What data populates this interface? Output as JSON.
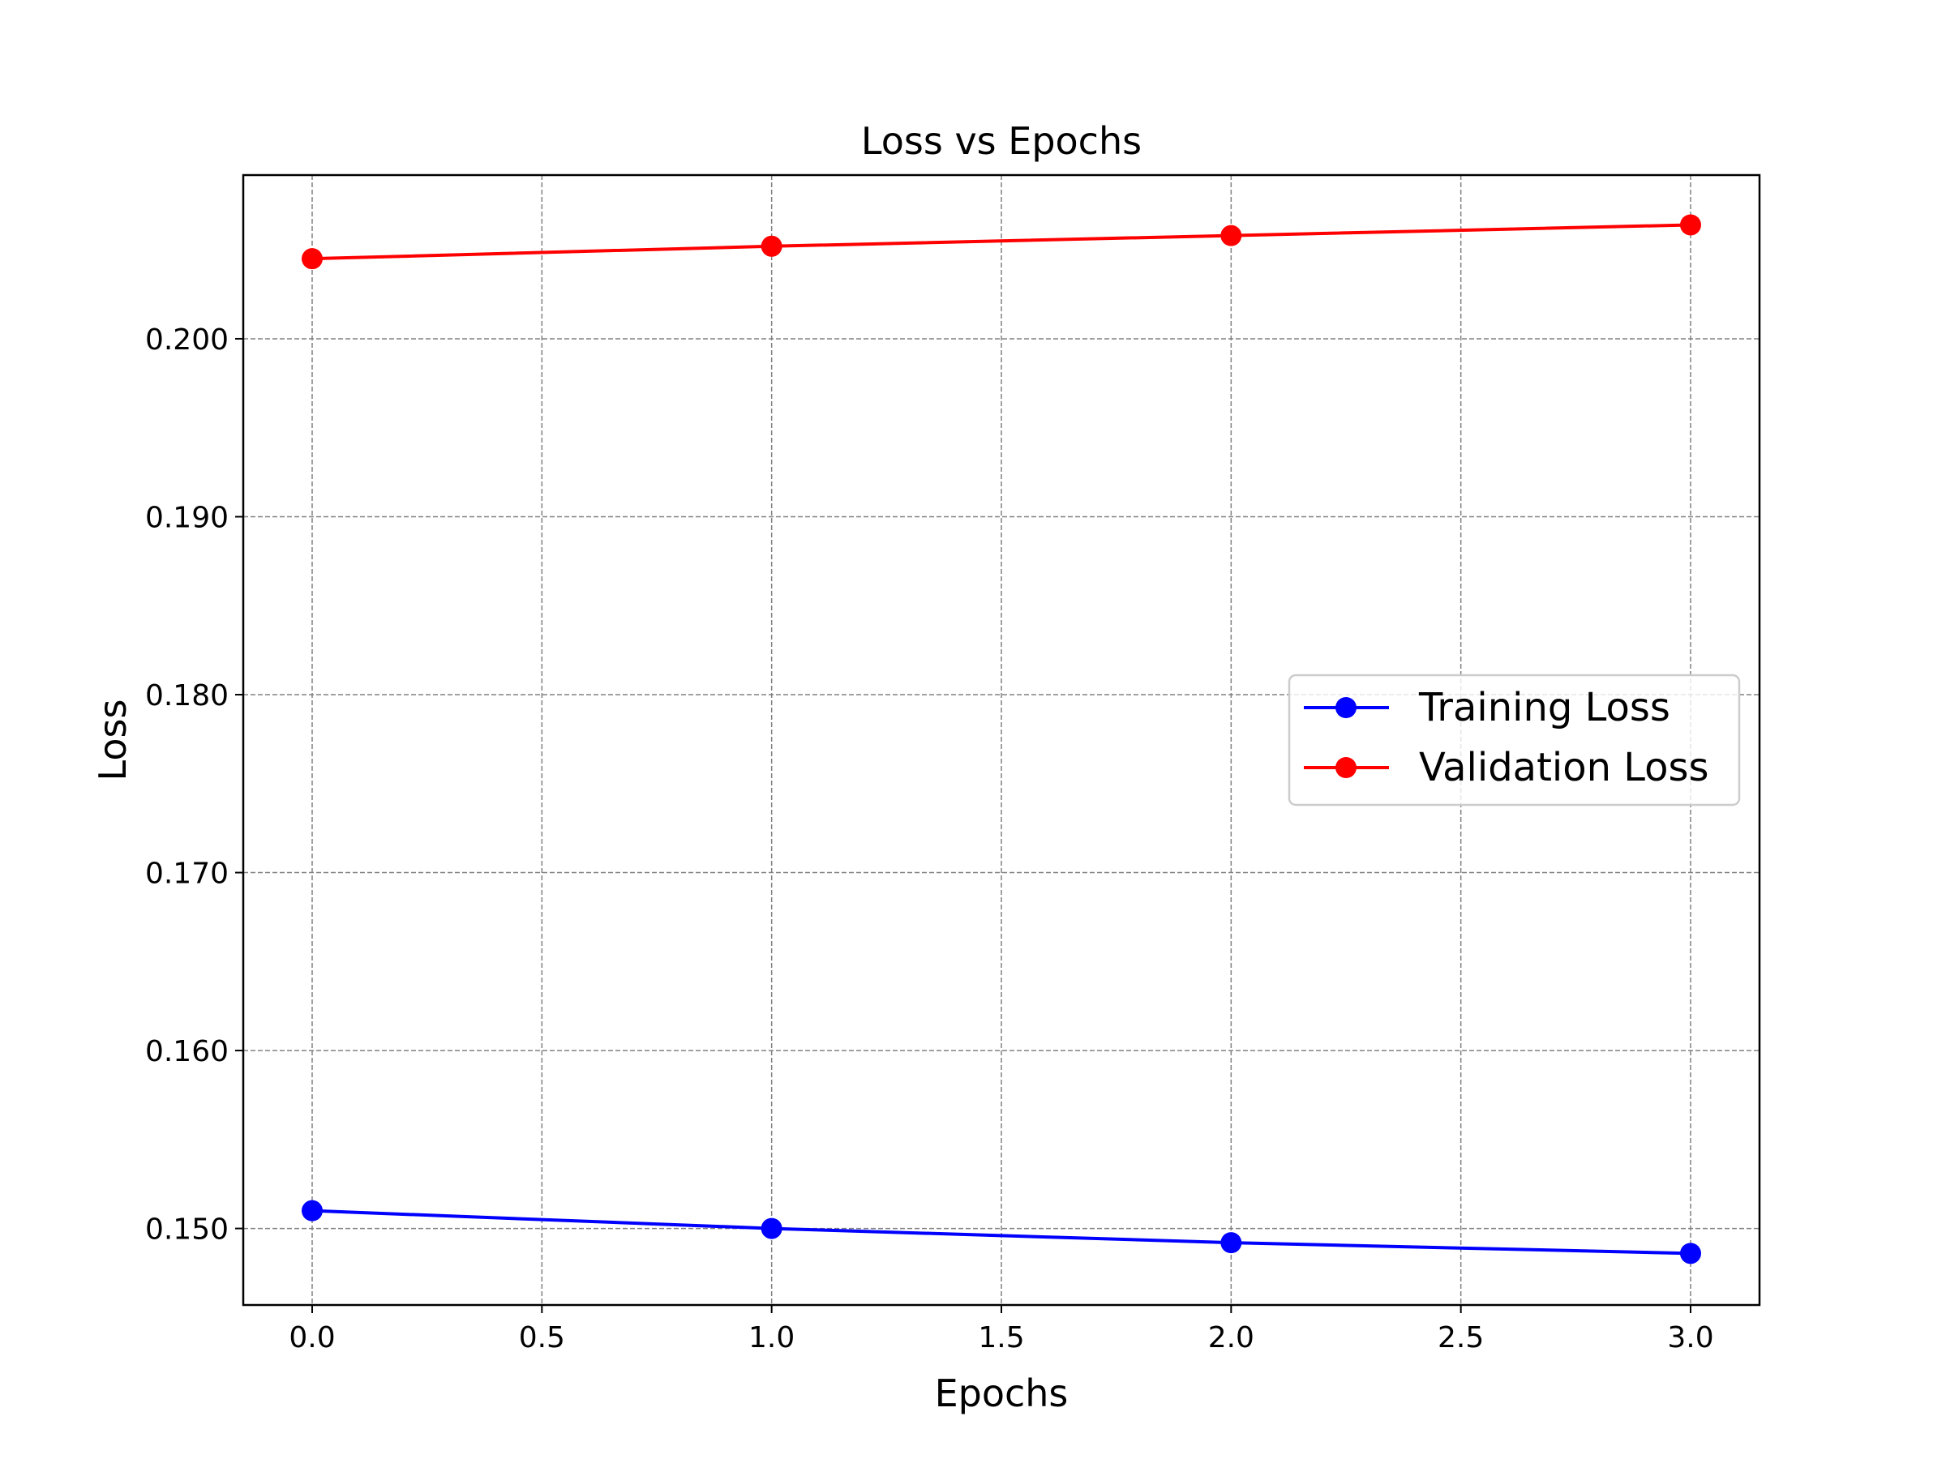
{
  "chart_data": {
    "type": "line",
    "title": "Loss vs Epochs",
    "xlabel": "Epochs",
    "ylabel": "Loss",
    "xlim": [
      -0.15,
      3.15
    ],
    "ylim": [
      0.1457,
      0.2092
    ],
    "x": [
      0,
      1,
      2,
      3
    ],
    "xticks": [
      0.0,
      0.5,
      1.0,
      1.5,
      2.0,
      2.5,
      3.0
    ],
    "xtick_labels": [
      "0.0",
      "0.5",
      "1.0",
      "1.5",
      "2.0",
      "2.5",
      "3.0"
    ],
    "yticks": [
      0.15,
      0.16,
      0.17,
      0.18,
      0.19,
      0.2
    ],
    "ytick_labels": [
      "0.150",
      "0.160",
      "0.170",
      "0.180",
      "0.190",
      "0.200"
    ],
    "grid": true,
    "legend_position": "center-right",
    "series": [
      {
        "name": "Training Loss",
        "color": "#0000ff",
        "marker": "circle",
        "values": [
          0.151,
          0.15,
          0.1492,
          0.1486
        ]
      },
      {
        "name": "Validation Loss",
        "color": "#ff0000",
        "marker": "circle",
        "values": [
          0.2045,
          0.2052,
          0.2058,
          0.2064
        ]
      }
    ]
  }
}
